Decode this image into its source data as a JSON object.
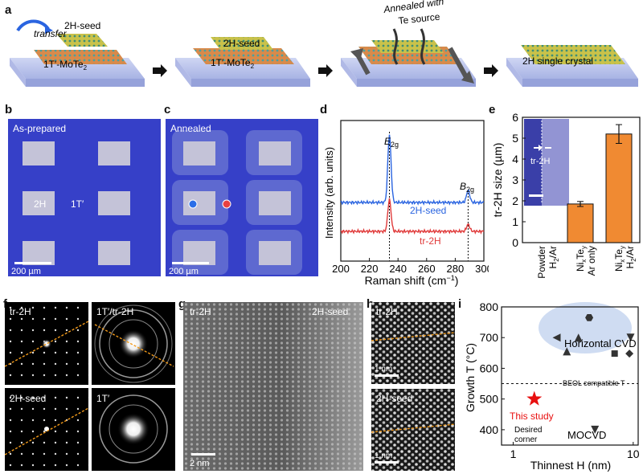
{
  "panel_letters": {
    "a": "a",
    "b": "b",
    "c": "c",
    "d": "d",
    "e": "e",
    "f": "f",
    "g": "g",
    "h": "h",
    "i": "i"
  },
  "panel_a": {
    "step1_transfer": "transfer",
    "step1_seed": "2H-seed",
    "step1_sub": "1T′-MoTe",
    "sub2": "2",
    "step2_seed": "2H-seed",
    "step2_sub": "1T′-MoTe",
    "step3_annealed_line1": "Annealed with",
    "step3_annealed_line2": "Te source",
    "step4_label": "2H single crystal",
    "colors": {
      "substrate": "#b9c3ec",
      "layer_orange": "#d98a4a",
      "layer_yellow": "#c9c24a",
      "arrow": "#555555"
    }
  },
  "panel_b": {
    "title": "As-prepared",
    "label_2h": "2H",
    "label_1t": "1T′",
    "scale": "200 µm"
  },
  "panel_c": {
    "title": "Annealed",
    "scale": "200 µm",
    "dot_colors": [
      "#2a6ee8",
      "#e84040"
    ]
  },
  "chart_data": [
    {
      "panel": "d",
      "type": "line",
      "xlabel": "Raman shift (cm",
      "xlabel_sup": "−1",
      "xlabel_end": ")",
      "ylabel": "Intensity (arb. units)",
      "xlim": [
        200,
        300
      ],
      "x_ticks": [
        "200",
        "220",
        "240",
        "260",
        "280",
        "300"
      ],
      "peak_E": "E",
      "peak_E_sub": "2g",
      "peak_B": "B",
      "peak_B_sub": "2g",
      "series": [
        {
          "name": "2H-seed",
          "color": "#2a64e0",
          "peaks": [
            {
              "x": 234,
              "height": 1.0
            },
            {
              "x": 289,
              "height": 0.18
            }
          ]
        },
        {
          "name": "tr-2H",
          "color": "#e03a3a",
          "peaks": [
            {
              "x": 234,
              "height": 0.55
            },
            {
              "x": 289,
              "height": 0.12
            }
          ]
        }
      ],
      "dashed_lines_x": [
        234,
        289
      ]
    },
    {
      "panel": "e",
      "type": "bar",
      "ylabel": "tr-2H size (µm)",
      "ylim": [
        0,
        6
      ],
      "y_ticks": [
        "0",
        "1",
        "2",
        "3",
        "4",
        "5",
        "6"
      ],
      "categories": [
        {
          "l1": "Powder",
          "l2": "H",
          "l2sub": "2",
          "l2end": "/Ar"
        },
        {
          "l1": "Ni",
          "l1sub1": "x",
          "l1mid": "Te",
          "l1sub2": "y",
          "l2": "Ar only"
        },
        {
          "l1": "Ni",
          "l1sub1": "x",
          "l1mid": "Te",
          "l1sub2": "y",
          "l2": "H",
          "l2sub": "2",
          "l2end": "/Ar"
        }
      ],
      "values": [
        0,
        1.85,
        5.2
      ],
      "errors": [
        0,
        0.12,
        0.45
      ],
      "bar_color": "#f08a32",
      "inset_label": "tr-2H"
    },
    {
      "panel": "i",
      "type": "scatter",
      "xlabel": "Thinnest H (nm)",
      "ylabel": "Growth T (°C)",
      "xscale": "log",
      "xlim": [
        0.8,
        11
      ],
      "ylim": [
        350,
        800
      ],
      "x_ticks": [
        "1",
        "10"
      ],
      "y_ticks": [
        "400",
        "500",
        "600",
        "700",
        "800"
      ],
      "threshold": 550,
      "threshold_label": "BEOL compatible T",
      "group_label_cvd": "Horizontal CVD",
      "group_label_mocvd": "MOCVD",
      "this_study_label_1": "This study",
      "this_study_label_2": "",
      "desired_1": "Desired",
      "desired_2": "corner",
      "points": [
        {
          "x": 2.3,
          "y": 700,
          "marker": "triangle-left"
        },
        {
          "x": 2.8,
          "y": 655,
          "marker": "triangle-up"
        },
        {
          "x": 3.5,
          "y": 700,
          "marker": "triangle-up"
        },
        {
          "x": 4.3,
          "y": 765,
          "marker": "hexagon"
        },
        {
          "x": 7.0,
          "y": 648,
          "marker": "square"
        },
        {
          "x": 9.5,
          "y": 700,
          "marker": "triangle-down"
        },
        {
          "x": 9.3,
          "y": 648,
          "marker": "diamond"
        },
        {
          "x": 4.8,
          "y": 400,
          "marker": "triangle-down"
        },
        {
          "x": 1.5,
          "y": 500,
          "marker": "star",
          "color": "#e81010"
        }
      ]
    }
  ],
  "panel_f": {
    "tl": "tr-2H",
    "tr": "1T′/tr-2H",
    "bl": "2H-seed",
    "br": "1T′"
  },
  "panel_g": {
    "left": "tr-2H",
    "right": "2H-seed",
    "scale": "2 nm"
  },
  "panel_h": {
    "top": "tr-2H",
    "bottom": "2H-seed",
    "scale": "1 nm"
  }
}
